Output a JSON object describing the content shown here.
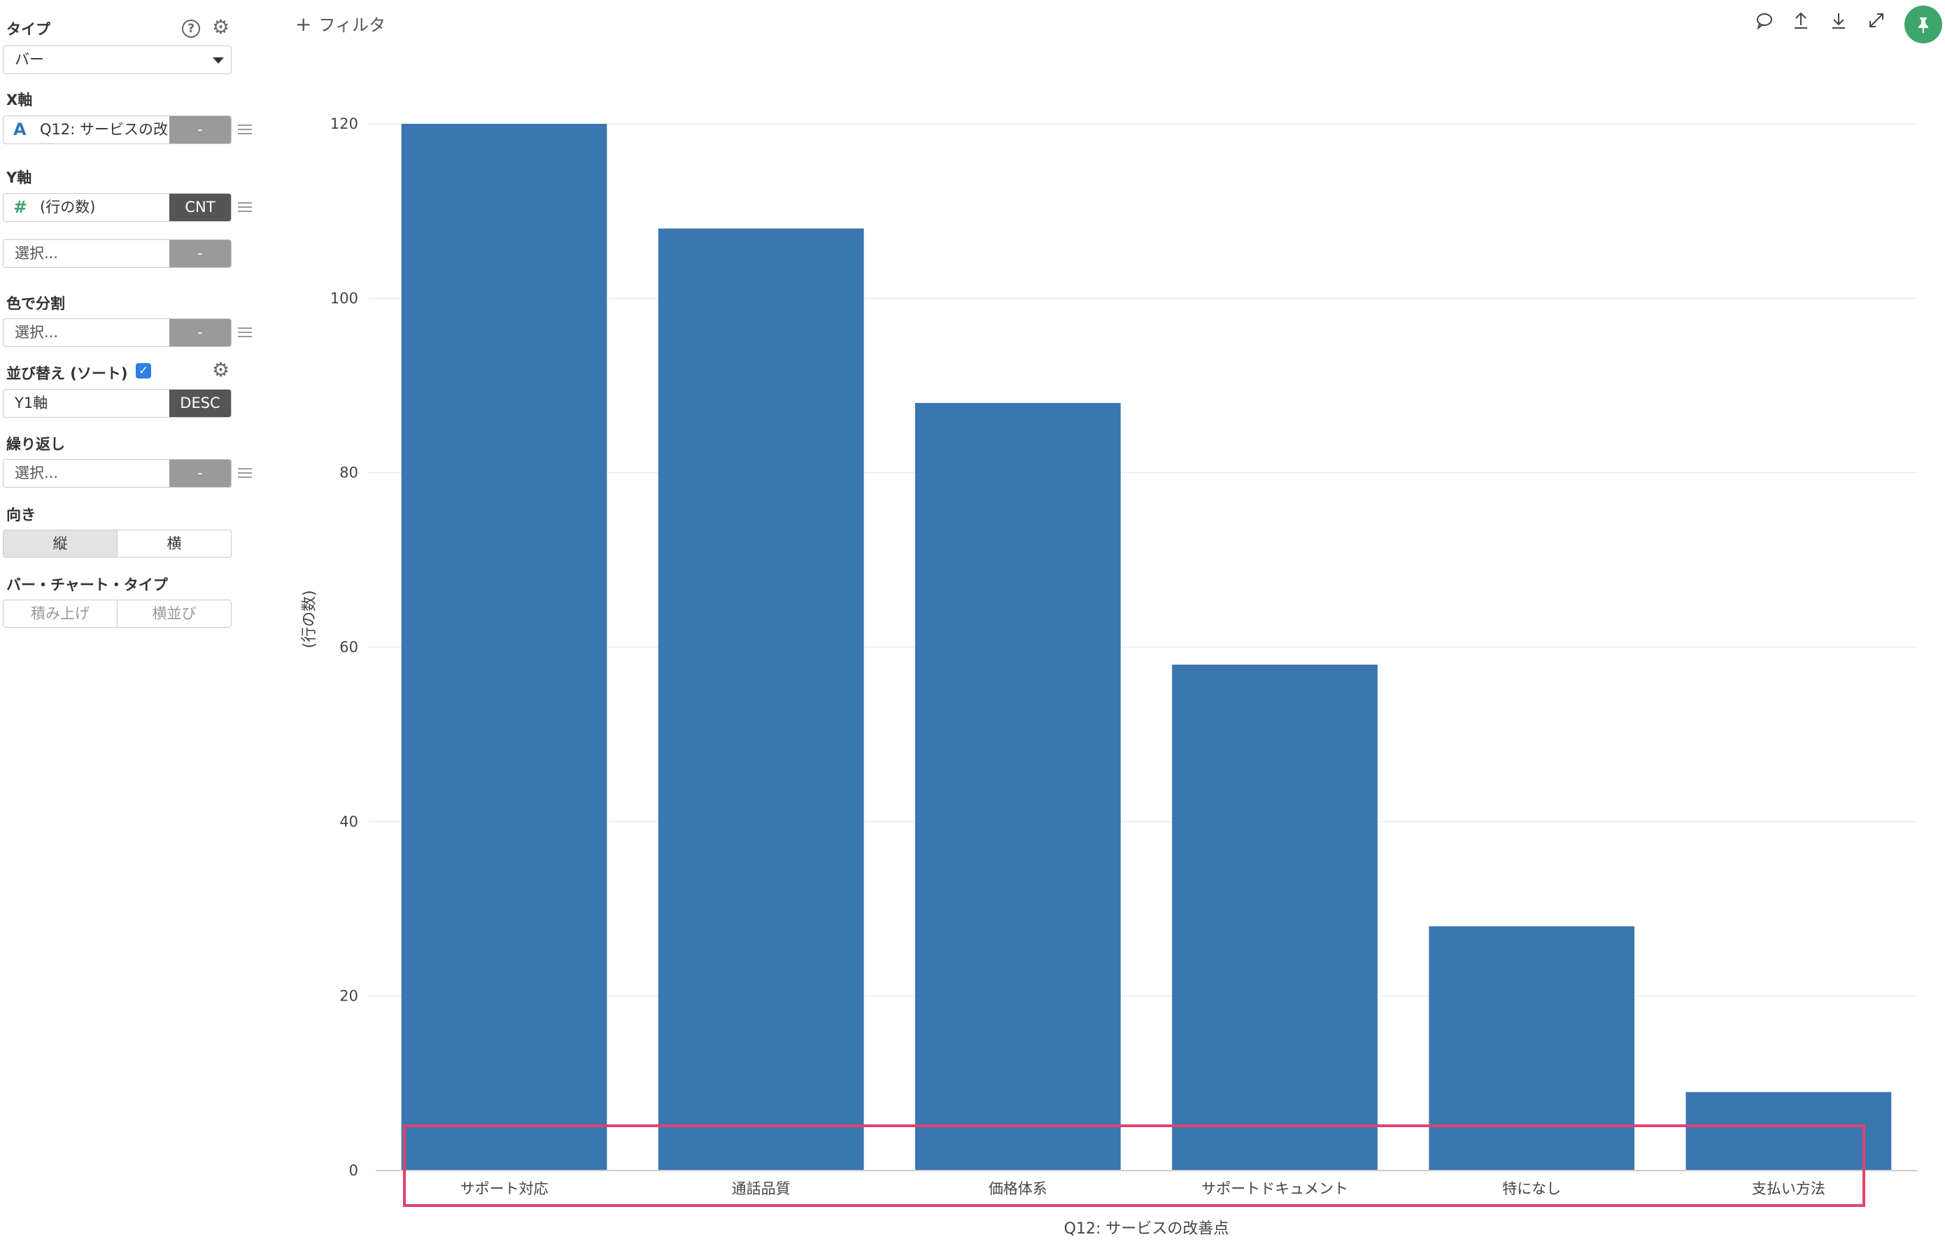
{
  "colors": {
    "bar": "#3a76af",
    "grid": "#e6e6e6",
    "highlight": "#e0436d",
    "pin": "#3ea66b",
    "aggregate_dark": "#555555",
    "aggregate_light": "#9a9a9a",
    "checkbox": "#2f7ee6"
  },
  "sidebar": {
    "type": {
      "label": "タイプ",
      "value": "バー"
    },
    "x_axis": {
      "label": "X軸",
      "icon": "text-type-icon",
      "icon_glyph": "A",
      "value": "Q12: サービスの改",
      "aggregate": "-"
    },
    "y_axis": {
      "label": "Y軸",
      "icon": "number-type-icon",
      "icon_glyph": "#",
      "value": "(行の数)",
      "aggregate": "CNT"
    },
    "y_axis_extra": {
      "placeholder": "選択...",
      "aggregate": "-"
    },
    "color_split": {
      "label": "色で分割",
      "placeholder": "選択...",
      "aggregate": "-"
    },
    "sort": {
      "label": "並び替え (ソート)",
      "checked": true,
      "value": "Y1軸",
      "order": "DESC"
    },
    "repeat": {
      "label": "繰り返し",
      "placeholder": "選択...",
      "aggregate": "-"
    },
    "orientation": {
      "label": "向き",
      "options": [
        "縦",
        "横"
      ],
      "selected": "縦"
    },
    "bar_chart_type": {
      "label": "バー・チャート・タイプ",
      "options": [
        "積み上げ",
        "横並び"
      ]
    }
  },
  "toolbar": {
    "filter_label": "フィルタ",
    "icons": [
      "comment-icon",
      "upload-icon",
      "download-icon",
      "expand-icon",
      "pin-icon"
    ]
  },
  "chart_data": {
    "type": "bar",
    "categories": [
      "サポート対応",
      "通話品質",
      "価格体系",
      "サポートドキュメント",
      "特になし",
      "支払い方法"
    ],
    "values": [
      120,
      108,
      88,
      58,
      28,
      9
    ],
    "xlabel": "Q12: サービスの改善点",
    "ylabel": "(行の数)",
    "ylim": [
      0,
      120
    ],
    "yticks": [
      0,
      20,
      40,
      60,
      80,
      100,
      120
    ],
    "grid": true,
    "sort": "descending"
  }
}
